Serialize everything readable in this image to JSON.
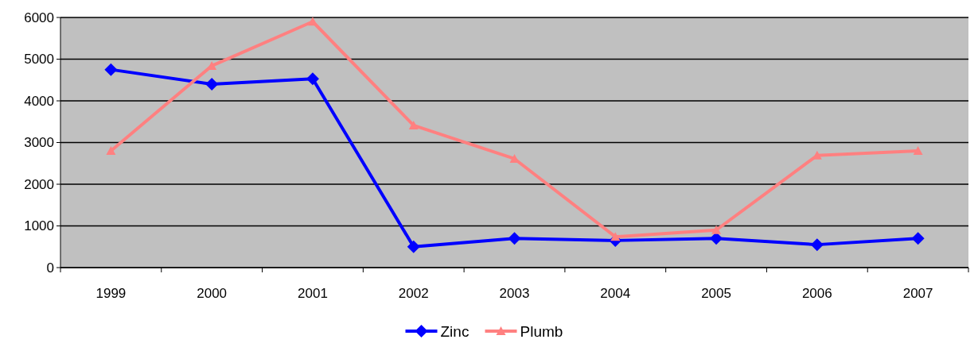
{
  "chart_data": {
    "type": "line",
    "categories": [
      "1999",
      "2000",
      "2001",
      "2002",
      "2003",
      "2004",
      "2005",
      "2006",
      "2007"
    ],
    "series": [
      {
        "name": "Zinc",
        "color": "#0000ff",
        "marker": "diamond",
        "values": [
          4750,
          4400,
          4530,
          500,
          700,
          650,
          700,
          550,
          700
        ]
      },
      {
        "name": "Plumb",
        "color": "#ff8080",
        "marker": "triangle",
        "values": [
          2800,
          4840,
          5900,
          3410,
          2610,
          740,
          900,
          2690,
          2800
        ]
      }
    ],
    "ylim": [
      0,
      6000
    ],
    "yticks": [
      0,
      1000,
      2000,
      3000,
      4000,
      5000,
      6000
    ],
    "grid": "y",
    "legend": "bottom",
    "line_style": "solid"
  }
}
